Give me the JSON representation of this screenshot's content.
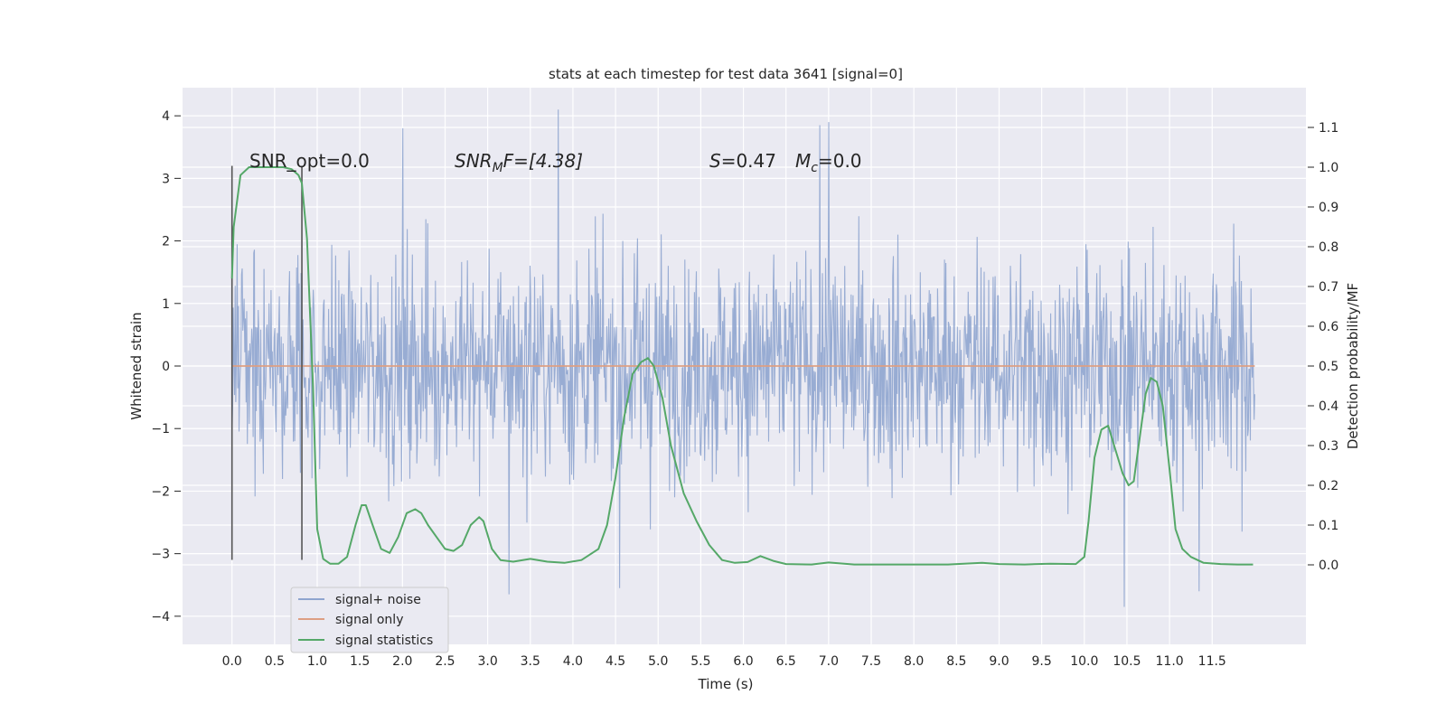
{
  "chart_data": {
    "type": "line",
    "title": "stats at each timestep for test data 3641 [signal=0]",
    "xlabel": "Time (s)",
    "ylabel": "Whitened strain",
    "y2label": "Detection probability/MF",
    "xlim": [
      -0.58,
      12.6
    ],
    "ylim": [
      -4.45,
      4.45
    ],
    "y2lim": [
      -0.2,
      1.2
    ],
    "x_ticks": [
      "0.0",
      "0.5",
      "1.0",
      "1.5",
      "2.0",
      "2.5",
      "3.0",
      "3.5",
      "4.0",
      "4.5",
      "5.0",
      "5.5",
      "6.0",
      "6.5",
      "7.0",
      "7.5",
      "8.0",
      "8.5",
      "9.0",
      "9.5",
      "10.0",
      "10.5",
      "11.0",
      "11.5"
    ],
    "y_ticks": [
      "−4",
      "−3",
      "−2",
      "−1",
      "0",
      "1",
      "2",
      "3",
      "4"
    ],
    "y2_ticks": [
      "0.0",
      "0.1",
      "0.2",
      "0.3",
      "0.4",
      "0.5",
      "0.6",
      "0.7",
      "0.8",
      "0.9",
      "1.0",
      "1.1"
    ],
    "grid": true,
    "legend_placement": "lower-left",
    "annotations": {
      "snr_opt": "SNR_opt=0.0",
      "snr_mf_base": "SNR",
      "snr_mf_sub": "M",
      "snr_mf_rest": "F=[4.38]",
      "s_label": "S",
      "s_rest": "=0.47",
      "mc_label": "M",
      "mc_sub": "c",
      "mc_rest": "=0.0"
    },
    "window_markers": {
      "x": [
        0.0,
        0.82
      ],
      "y_range": [
        -3.1,
        3.2
      ]
    },
    "series": [
      {
        "name": "signal+ noise",
        "color": "#8fa5cf",
        "axis": "left",
        "kind": "noise",
        "x_range": [
          0.0,
          12.0
        ],
        "sample_count": 1600,
        "envelope": {
          "max": 4.1,
          "min": -3.85,
          "typical_abs": 1.35
        },
        "notable_peaks": [
          {
            "x": 3.83,
            "y": 4.1
          },
          {
            "x": 2.0,
            "y": 3.8
          },
          {
            "x": 7.0,
            "y": 3.9
          },
          {
            "x": 6.9,
            "y": 3.85
          },
          {
            "x": 10.47,
            "y": -3.85
          },
          {
            "x": 3.25,
            "y": -3.65
          },
          {
            "x": 4.55,
            "y": -3.55
          },
          {
            "x": 11.35,
            "y": -3.6
          }
        ]
      },
      {
        "name": "signal only",
        "color": "#dd9f83",
        "axis": "left",
        "x": [
          0.0,
          12.0
        ],
        "y": [
          0.0,
          0.0
        ]
      },
      {
        "name": "signal statistics",
        "color": "#55a868",
        "axis": "right",
        "x": [
          0.0,
          0.02,
          0.1,
          0.2,
          0.3,
          0.4,
          0.5,
          0.6,
          0.7,
          0.78,
          0.82,
          0.88,
          0.95,
          1.0,
          1.07,
          1.15,
          1.25,
          1.35,
          1.45,
          1.52,
          1.57,
          1.65,
          1.75,
          1.85,
          1.95,
          2.05,
          2.15,
          2.22,
          2.3,
          2.4,
          2.5,
          2.6,
          2.7,
          2.8,
          2.9,
          2.95,
          3.05,
          3.15,
          3.3,
          3.5,
          3.7,
          3.9,
          4.1,
          4.3,
          4.4,
          4.5,
          4.6,
          4.7,
          4.8,
          4.88,
          4.95,
          5.05,
          5.15,
          5.3,
          5.45,
          5.6,
          5.75,
          5.9,
          6.05,
          6.2,
          6.35,
          6.5,
          6.8,
          7.0,
          7.3,
          7.6,
          8.0,
          8.4,
          8.8,
          9.0,
          9.3,
          9.6,
          9.9,
          10.0,
          10.05,
          10.12,
          10.2,
          10.28,
          10.35,
          10.45,
          10.52,
          10.58,
          10.65,
          10.72,
          10.78,
          10.85,
          10.92,
          11.0,
          11.07,
          11.15,
          11.25,
          11.4,
          11.6,
          11.8,
          11.98
        ],
        "y": [
          0.72,
          0.85,
          0.98,
          1.0,
          1.0,
          1.0,
          1.0,
          1.0,
          0.995,
          0.98,
          0.96,
          0.82,
          0.45,
          0.09,
          0.015,
          0.003,
          0.003,
          0.02,
          0.1,
          0.15,
          0.15,
          0.1,
          0.04,
          0.03,
          0.07,
          0.13,
          0.14,
          0.13,
          0.1,
          0.07,
          0.04,
          0.035,
          0.05,
          0.1,
          0.12,
          0.11,
          0.04,
          0.012,
          0.008,
          0.015,
          0.008,
          0.005,
          0.012,
          0.04,
          0.1,
          0.22,
          0.37,
          0.48,
          0.51,
          0.52,
          0.5,
          0.42,
          0.3,
          0.18,
          0.11,
          0.05,
          0.012,
          0.005,
          0.007,
          0.022,
          0.01,
          0.002,
          0.001,
          0.006,
          0.001,
          0.001,
          0.001,
          0.001,
          0.005,
          0.002,
          0.001,
          0.003,
          0.002,
          0.02,
          0.11,
          0.27,
          0.34,
          0.35,
          0.3,
          0.23,
          0.2,
          0.21,
          0.32,
          0.43,
          0.47,
          0.46,
          0.4,
          0.24,
          0.09,
          0.04,
          0.02,
          0.005,
          0.002,
          0.001,
          0.001
        ]
      }
    ]
  }
}
